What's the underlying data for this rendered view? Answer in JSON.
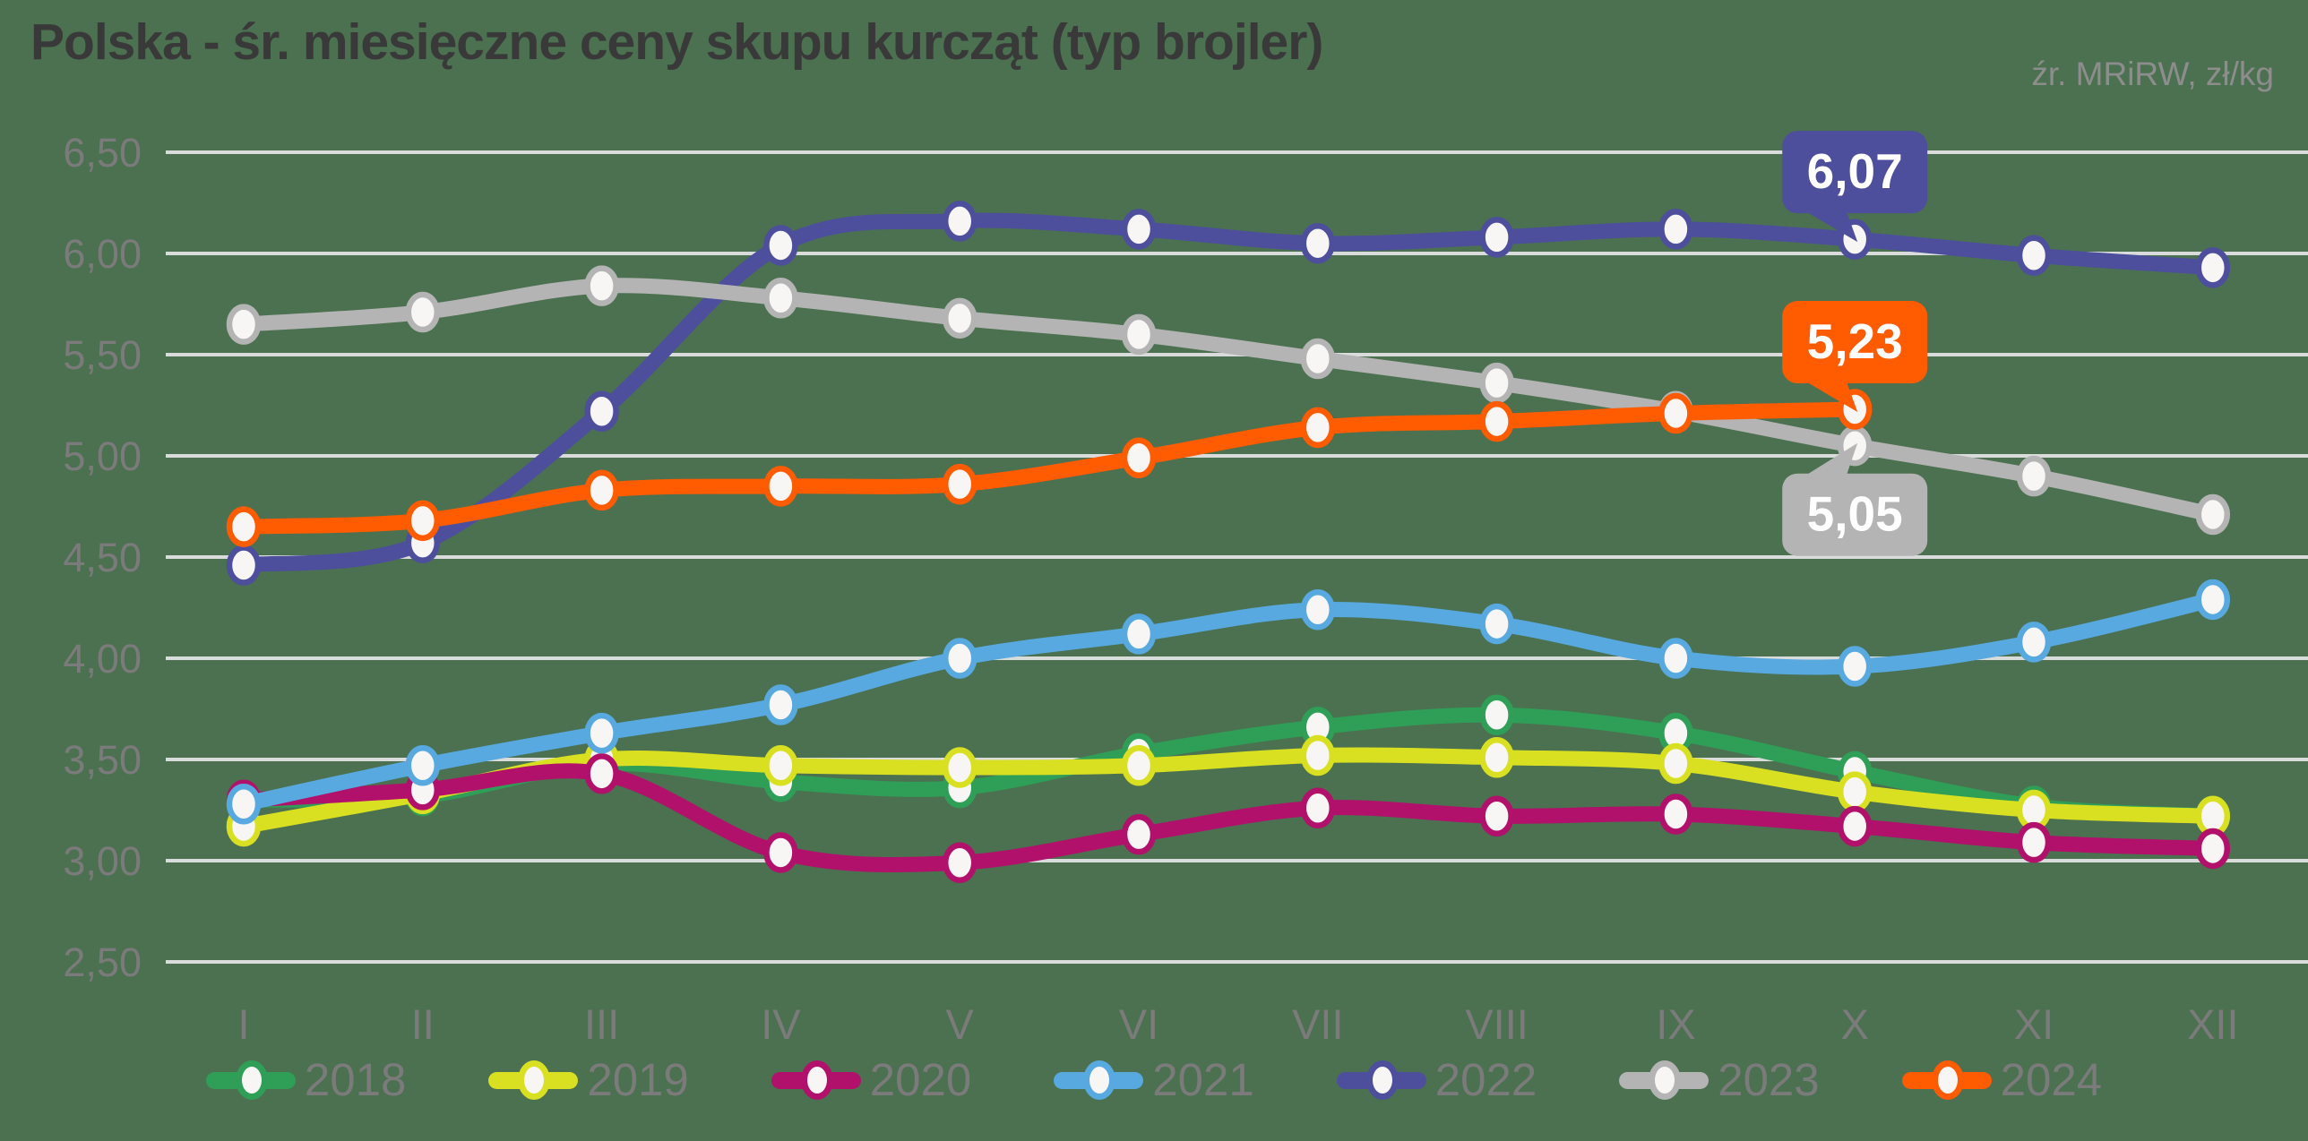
{
  "header": {
    "title": "Polska - śr. miesięczne ceny skupu kurcząt (typ brojler)",
    "source_note": "źr. MRiRW, zł/kg"
  },
  "colors": {
    "background": "#4b7150",
    "grid": "#e6e6e6",
    "axis_text": "#7b7b7b",
    "title_text": "#3a393a",
    "source_text": "#8d8d8d",
    "marker_fill": "#f7f6f4"
  },
  "chart_data": {
    "type": "line",
    "title": "Polska - śr. miesięczne ceny skupu kurcząt (typ brojler)",
    "unit": "zł/kg",
    "source": "źr. MRiRW, zł/kg",
    "grid": "horizontal",
    "legend_position": "bottom",
    "categories": [
      "I",
      "II",
      "III",
      "IV",
      "V",
      "VI",
      "VII",
      "VIII",
      "IX",
      "X",
      "XI",
      "XII"
    ],
    "y_axis": {
      "min": 2.5,
      "max": 6.5,
      "step": 0.5,
      "tick_labels": [
        "6,50",
        "6,00",
        "5,50",
        "5,00",
        "4,50",
        "4,00",
        "3,50",
        "3,00",
        "2,50"
      ]
    },
    "series": [
      {
        "name": "2018",
        "color": "#2f9e57",
        "values": [
          3.3,
          3.32,
          3.48,
          3.39,
          3.36,
          3.53,
          3.66,
          3.72,
          3.63,
          3.44,
          3.27,
          3.22
        ]
      },
      {
        "name": "2019",
        "color": "#d9e021",
        "values": [
          3.17,
          3.33,
          3.5,
          3.47,
          3.46,
          3.47,
          3.52,
          3.51,
          3.48,
          3.34,
          3.25,
          3.22
        ]
      },
      {
        "name": "2020",
        "color": "#b1116a",
        "values": [
          3.3,
          3.35,
          3.43,
          3.04,
          2.99,
          3.13,
          3.26,
          3.22,
          3.23,
          3.17,
          3.09,
          3.06
        ]
      },
      {
        "name": "2021",
        "color": "#57a9e0",
        "values": [
          3.28,
          3.47,
          3.63,
          3.77,
          4.0,
          4.12,
          4.24,
          4.17,
          4.0,
          3.96,
          4.08,
          4.29
        ]
      },
      {
        "name": "2022",
        "color": "#4d4f9d",
        "values": [
          4.46,
          4.57,
          5.22,
          6.04,
          6.16,
          6.12,
          6.05,
          6.08,
          6.12,
          6.07,
          5.99,
          5.93
        ]
      },
      {
        "name": "2023",
        "color": "#b4b4b4",
        "values": [
          5.65,
          5.71,
          5.84,
          5.78,
          5.68,
          5.6,
          5.48,
          5.36,
          5.22,
          5.05,
          4.9,
          4.71
        ]
      },
      {
        "name": "2024",
        "color": "#ff5b00",
        "values": [
          4.65,
          4.68,
          4.83,
          4.85,
          4.86,
          4.99,
          5.14,
          5.17,
          5.21,
          5.23,
          null,
          null
        ]
      }
    ],
    "annotations": [
      {
        "label": "6,07",
        "series": "2022",
        "month_index": 9,
        "value": 6.07,
        "color": "#4d4f9d",
        "position": "above"
      },
      {
        "label": "5,23",
        "series": "2024",
        "month_index": 9,
        "value": 5.23,
        "color": "#ff5b00",
        "position": "above"
      },
      {
        "label": "5,05",
        "series": "2023",
        "month_index": 9,
        "value": 5.05,
        "color": "#b4b4b4",
        "position": "below"
      }
    ]
  }
}
